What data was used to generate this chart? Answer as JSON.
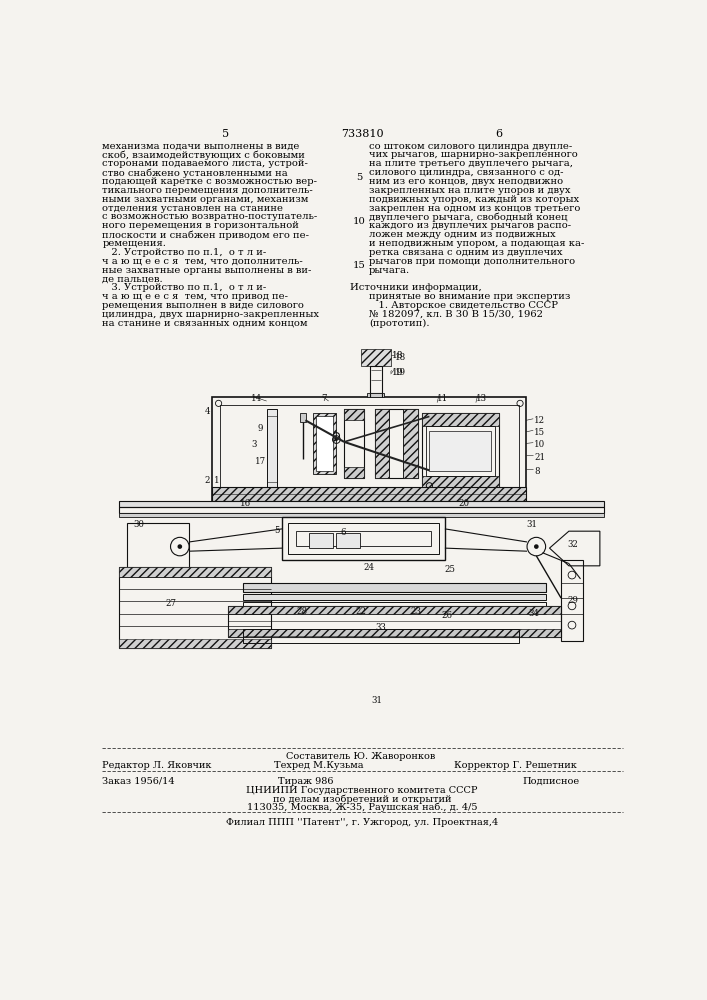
{
  "bg_color": "#f5f3ef",
  "page_number_left": "5",
  "page_number_center": "733810",
  "page_number_right": "6",
  "col_left_text": [
    "механизма подачи выполнены в виде",
    "скоб, взаимодействующих с боковыми",
    "сторонами подаваемого листа, устрой-",
    "ство снабжено установленными на",
    "подающей каретке с возможностью вер-",
    "тикального перемещения дополнитель-",
    "ными захватными органами, механизм",
    "отделения установлен на станине",
    "с возможностью возвратно-поступатель-",
    "ного перемещения в горизонтальной",
    "плоскости и снабжен приводом его пе-",
    "ремещения.",
    "   2. Устройство по п.1,  о т л и-",
    "ч а ю щ е е с я  тем, что дополнитель-",
    "ные захватные органы выполнены в ви-",
    "де пальцев.",
    "   3. Устройство по п.1,  о т л и-",
    "ч а ю щ е е с я  тем, что привод пе-",
    "ремещения выполнен в виде силового",
    "цилиндра, двух шарнирно-закрепленных",
    "на станине и связанных одним концом"
  ],
  "col_right_text": [
    "со штоком силового цилиндра двупле-",
    "чих рычагов, шарнирно-закрепленного",
    "на плите третьего двуплечего рычага,",
    "силового цилиндра, связанного с од-",
    "ним из его концов, двух неподвижно",
    "закрепленных на плите упоров и двух",
    "подвижных упоров, каждый из которых",
    "закреплен на одном из концов третьего",
    "двуплечего рычага, свободный конец",
    "каждого из двуплечих рычагов распо-",
    "ложен между одним из подвижных",
    "и неподвижным упором, а подающая ка-",
    "ретка связана с одним из двуплечих",
    "рычагов при помощи дополнительного",
    "рычага."
  ],
  "sources_header": "Источники информации,",
  "sources_subheader": "принятые во внимание при экспертиз",
  "sources_text": "   1. Авторское свидетельство СССР",
  "sources_text2": "№ 182097, кл. В 30 В 15/30, 1962",
  "sources_text3": "(прототип).",
  "footer_composer": "Составитель Ю. Жаворонков",
  "footer_editor": "Редактор Л. Яковчик",
  "footer_tech": "Техред М.Кузьма",
  "footer_corrector": "Корректор Г. Решетник",
  "footer_order": "Заказ 1956/14",
  "footer_tirazh": "Тираж 986",
  "footer_podpisnoe": "Подписное",
  "footer_org": "ЦНИИПИ Государственного комитета СССР",
  "footer_org2": "по делам изобретений и открытий",
  "footer_org3": "113035, Москва, Ж-35, Раушская наб., д. 4/5",
  "footer_filial": "Филиал ППП ''Патент'', г. Ужгород, ул. Проектная,4"
}
